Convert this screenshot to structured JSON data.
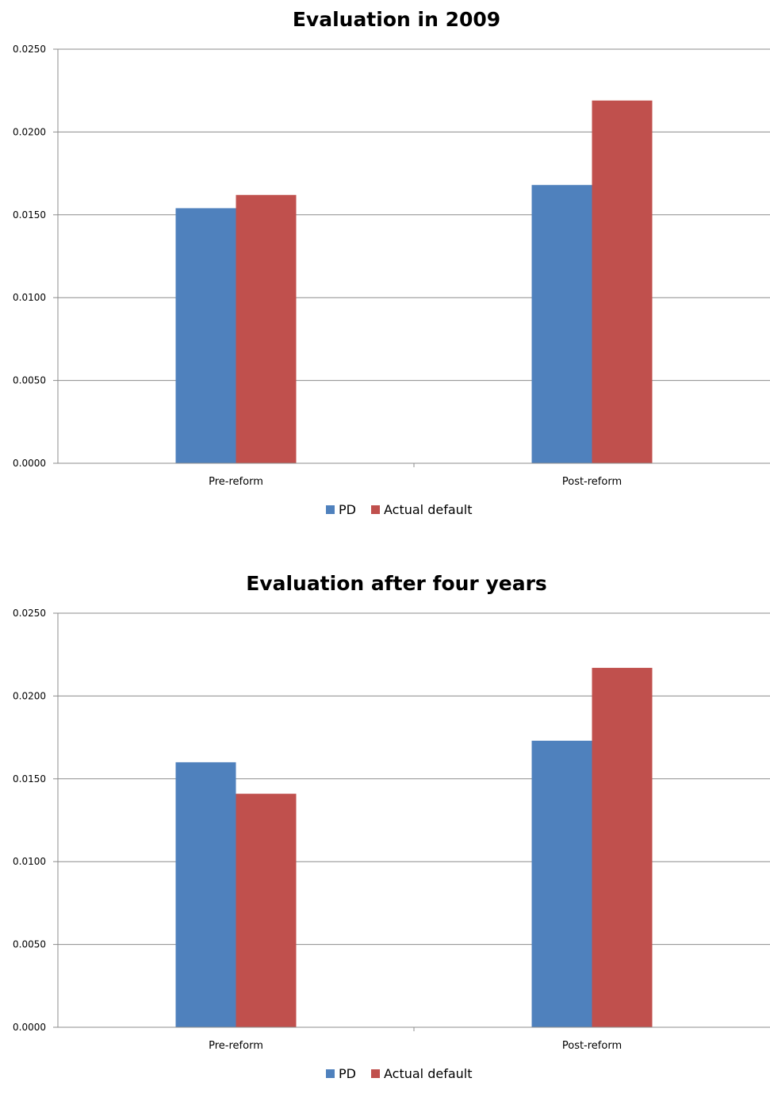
{
  "chart_data": [
    {
      "type": "bar",
      "title": "Evaluation in 2009",
      "categories": [
        "Pre-reform",
        "Post-reform"
      ],
      "series": [
        {
          "name": "PD",
          "color": "#4f81bd",
          "values": [
            0.0154,
            0.0168
          ]
        },
        {
          "name": "Actual default",
          "color": "#c0504d",
          "values": [
            0.0162,
            0.0219
          ]
        }
      ],
      "ylim": [
        0,
        0.025
      ],
      "yticks": [
        "0.0000",
        "0.0050",
        "0.0100",
        "0.0150",
        "0.0200",
        "0.0250"
      ],
      "grid": true,
      "legend": "bottom"
    },
    {
      "type": "bar",
      "title": "Evaluation after four years",
      "categories": [
        "Pre-reform",
        "Post-reform"
      ],
      "series": [
        {
          "name": "PD",
          "color": "#4f81bd",
          "values": [
            0.016,
            0.0173
          ]
        },
        {
          "name": "Actual default",
          "color": "#c0504d",
          "values": [
            0.0141,
            0.0217
          ]
        }
      ],
      "ylim": [
        0,
        0.025
      ],
      "yticks": [
        "0.0000",
        "0.0050",
        "0.0100",
        "0.0150",
        "0.0200",
        "0.0250"
      ],
      "grid": true,
      "legend": "bottom"
    }
  ]
}
